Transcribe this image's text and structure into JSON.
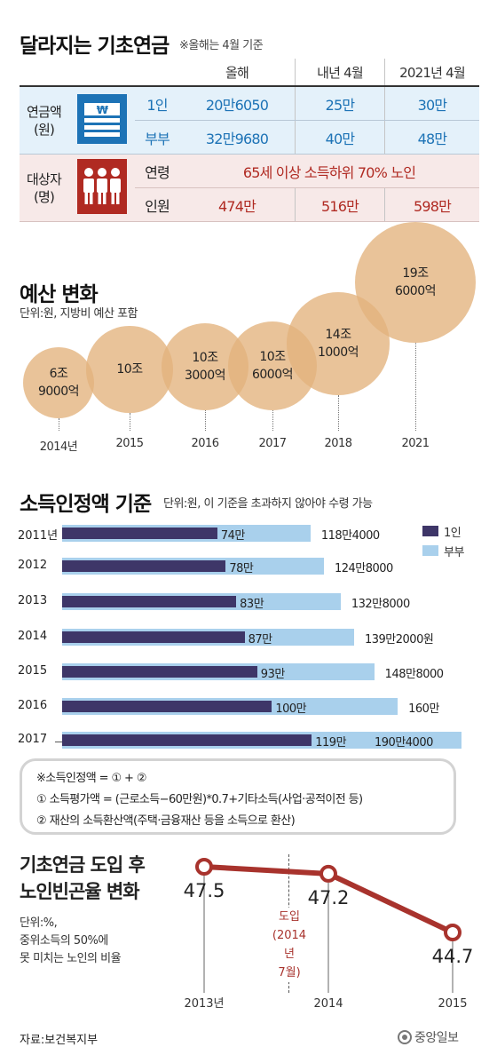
{
  "pension": {
    "title": "달라지는 기초연금",
    "note": "※올해는 4월 기준",
    "headers": [
      "올해",
      "내년 4월",
      "2021년 4월"
    ],
    "amount_label": "연금액\n(원)",
    "target_label": "대상자\n(명)",
    "rows": [
      {
        "label": "1인",
        "values": [
          "20만6050",
          "25만",
          "30만"
        ]
      },
      {
        "label": "부부",
        "values": [
          "32만9680",
          "40만",
          "48만"
        ]
      },
      {
        "label": "연령",
        "span": "65세 이상 소득하위 70% 노인"
      },
      {
        "label": "인원",
        "values": [
          "474만",
          "516만",
          "598만"
        ]
      }
    ],
    "icon_labels": {
      "money": "₩"
    },
    "colors": {
      "blue": "#1d73b6",
      "blue_bg": "#e4f1fa",
      "red": "#b02a22",
      "red_bg": "#f7e9e8"
    }
  },
  "budget": {
    "title": "예산 변화",
    "unit": "단위:원, 지방비 예산 포함",
    "color": "#e3b27c"
  },
  "income": {
    "title": "소득인정액 기준",
    "unit": "단위:원, 이 기준을 초과하지 않아야 수령 가능",
    "legend": [
      "1인",
      "부부"
    ],
    "colors": {
      "single": "#3e3668",
      "couple": "#a9d0ec"
    }
  },
  "formula": {
    "line1": "※소득인정액 = ① + ②",
    "line2": "① 소득평가액 = (근로소득−60만원)*0.7+기타소득(사업·공적이전 등)",
    "line3": "② 재산의 소득환산액(주택·금융재산 등을 소득으로 환산)"
  },
  "poverty": {
    "title1": "기초연금 도입 후",
    "title2": "노인빈곤율 변화",
    "unit1": "단위:%,",
    "unit2": "중위소득의 50%에",
    "unit3": "못 미치는 노인의 비율",
    "intro1": "도입",
    "intro2": "(2014년",
    "intro3": "7월)",
    "color": "#a8332d"
  },
  "source": "자료:보건복지부",
  "logo": "중앙일보",
  "chart_data": [
    {
      "type": "bubble",
      "title": "예산 변화",
      "subtitle": "단위:원, 지방비 예산 포함",
      "categories": [
        "2014년",
        "2015",
        "2016",
        "2017",
        "2018",
        "2021"
      ],
      "labels": [
        "6조\n9000억",
        "10조",
        "10조\n3000억",
        "10조\n6000억",
        "14조\n1000억",
        "19조\n6000억"
      ],
      "values": [
        6.9,
        10.0,
        10.3,
        10.6,
        14.1,
        19.6
      ]
    },
    {
      "type": "bar",
      "title": "소득인정액 기준",
      "subtitle": "단위:원, 이 기준을 초과하지 않아야 수령 가능",
      "categories": [
        "2011년",
        "2012",
        "2013",
        "2014",
        "2015",
        "2016",
        "2017"
      ],
      "series": [
        {
          "name": "1인",
          "values": [
            74,
            78,
            83,
            87,
            93,
            100,
            119
          ],
          "labels": [
            "74만",
            "78만",
            "83만",
            "87만",
            "93만",
            "100만",
            "119만"
          ]
        },
        {
          "name": "부부",
          "values": [
            118.4,
            124.8,
            132.8,
            139.2,
            148.8,
            160,
            190.4
          ],
          "labels": [
            "118만4000",
            "124만8000",
            "132만8000",
            "139만2000원",
            "148만8000",
            "160만",
            "190만4000"
          ]
        }
      ]
    },
    {
      "type": "line",
      "title": "기초연금 도입 후 노인빈곤율 변화",
      "subtitle": "단위:%, 중위소득의 50%에 못 미치는 노인의 비율",
      "x": [
        "2013년",
        "2014",
        "2015"
      ],
      "labels": [
        "47.5",
        "47.2",
        "44.7"
      ],
      "values": [
        47.5,
        47.2,
        44.7
      ]
    }
  ]
}
